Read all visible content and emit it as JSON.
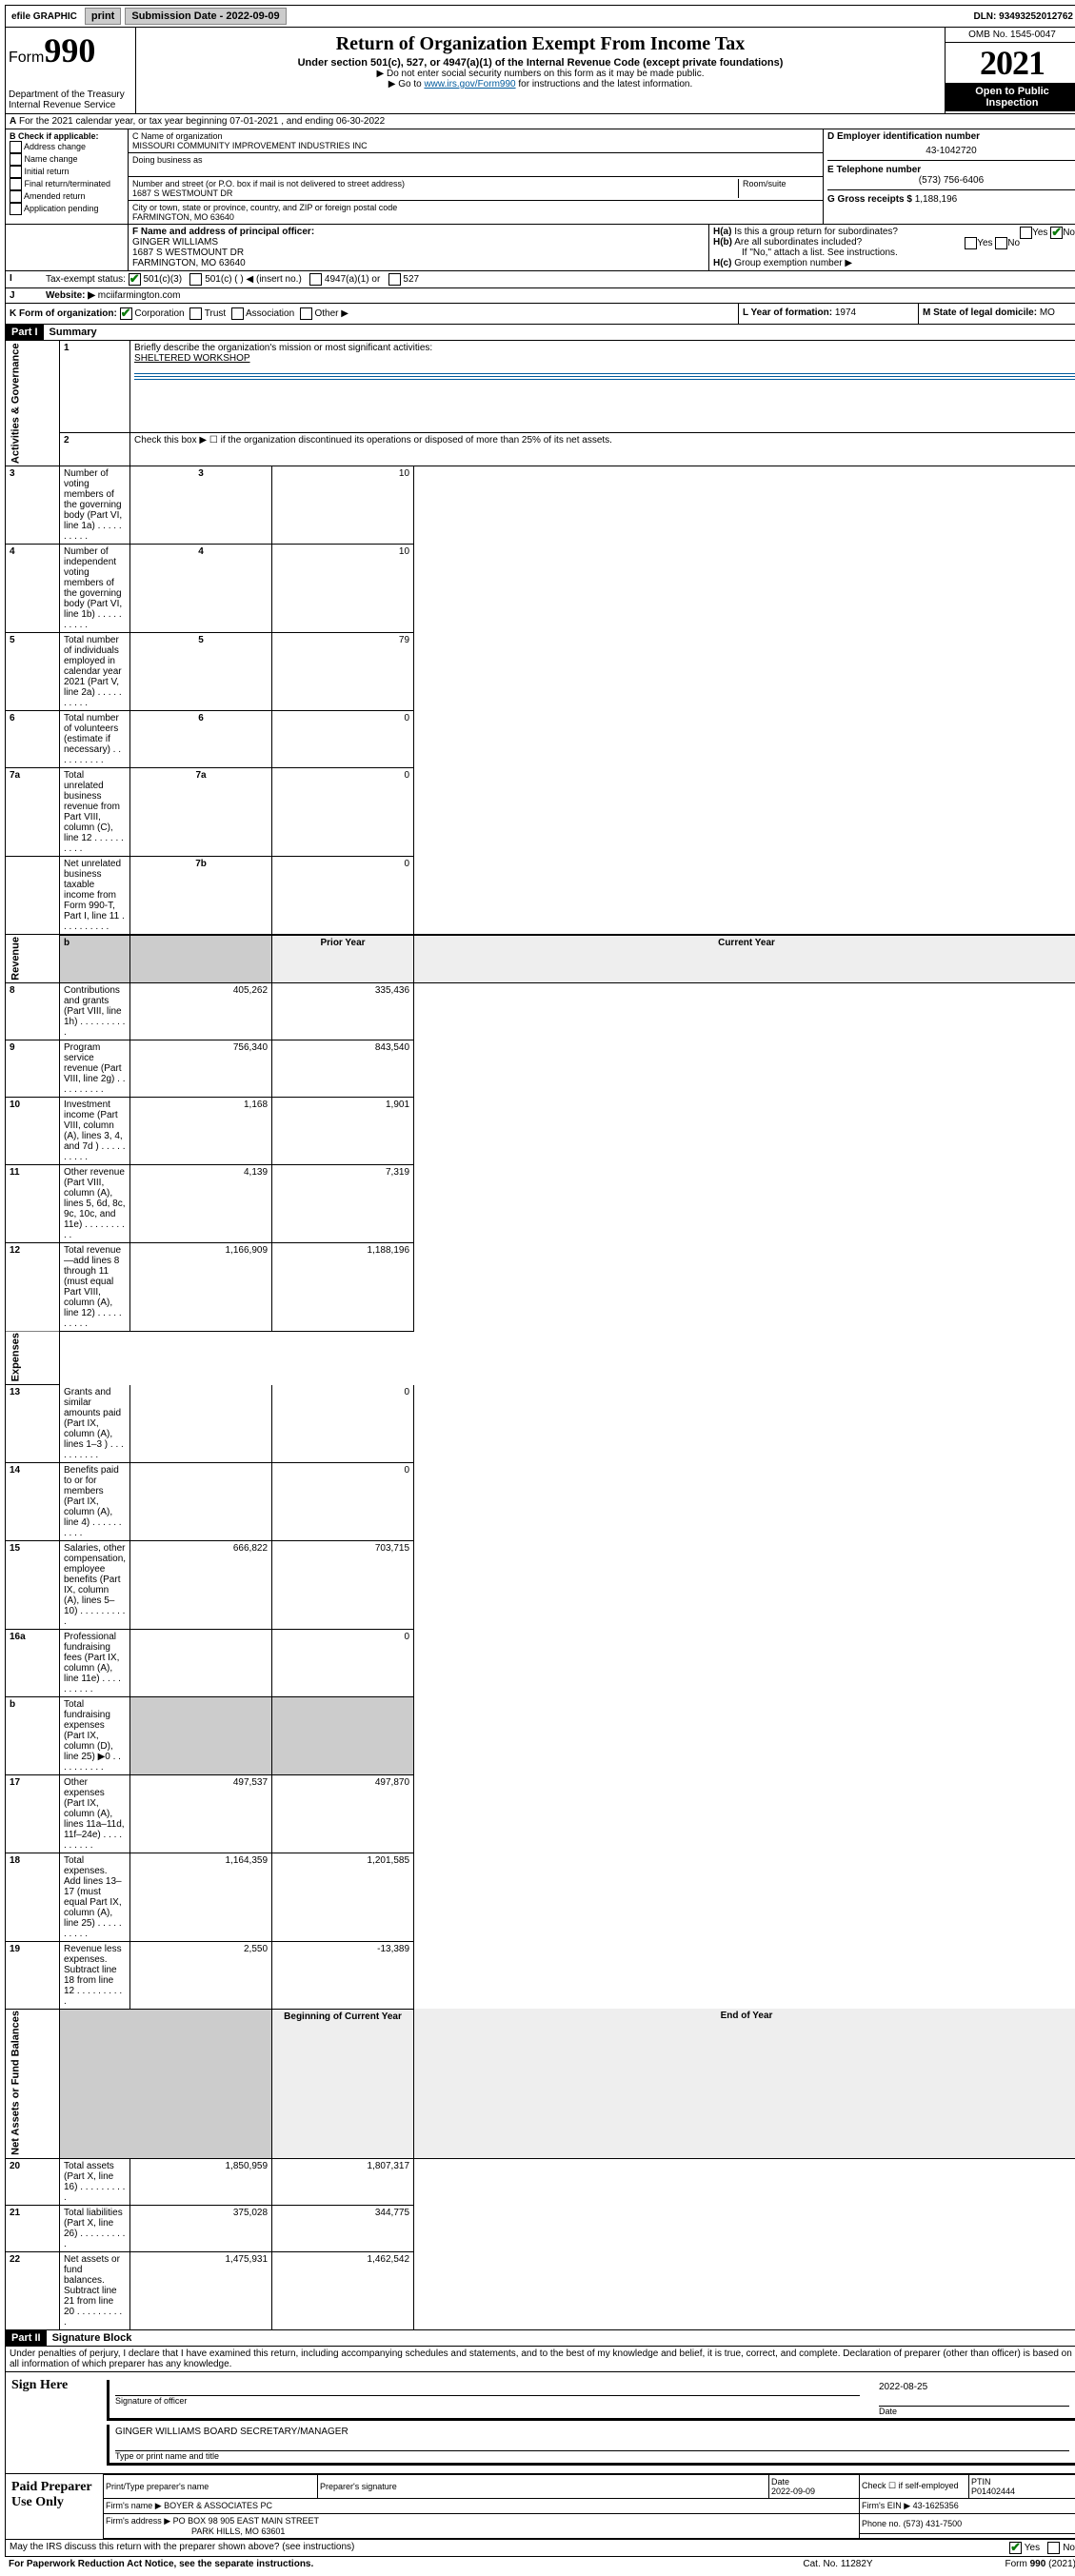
{
  "topbar": {
    "efile": "efile GRAPHIC",
    "print": "print",
    "subdate_label": "Submission Date - 2022-09-09",
    "dln": "DLN: 93493252012762"
  },
  "header": {
    "form_label": "Form",
    "form_number": "990",
    "title": "Return of Organization Exempt From Income Tax",
    "subtitle": "Under section 501(c), 527, or 4947(a)(1) of the Internal Revenue Code (except private foundations)",
    "note1": "▶ Do not enter social security numbers on this form as it may be made public.",
    "note2_pre": "▶ Go to ",
    "note2_link": "www.irs.gov/Form990",
    "note2_post": " for instructions and the latest information.",
    "dept": "Department of the Treasury",
    "irs": "Internal Revenue Service",
    "omb": "OMB No. 1545-0047",
    "year": "2021",
    "open": "Open to Public Inspection"
  },
  "section_a": {
    "line": "For the 2021 calendar year, or tax year beginning 07-01-2021   , and ending 06-30-2022",
    "b_label": "B Check if applicable:",
    "b_opts": [
      "Address change",
      "Name change",
      "Initial return",
      "Final return/terminated",
      "Amended return",
      "Application pending"
    ],
    "c_label": "C Name of organization",
    "c_name": "MISSOURI COMMUNITY IMPROVEMENT INDUSTRIES INC",
    "dba_label": "Doing business as",
    "addr_label": "Number and street (or P.O. box if mail is not delivered to street address)",
    "addr": "1687 S WESTMOUNT DR",
    "room_label": "Room/suite",
    "city_label": "City or town, state or province, country, and ZIP or foreign postal code",
    "city": "FARMINGTON, MO  63640",
    "d_label": "D Employer identification number",
    "d_val": "43-1042720",
    "e_label": "E Telephone number",
    "e_val": "(573) 756-6406",
    "g_label": "G Gross receipts $",
    "g_val": "1,188,196",
    "f_label": "F Name and address of principal officer:",
    "f_name": "GINGER WILLIAMS",
    "f_addr1": "1687 S WESTMOUNT DR",
    "f_addr2": "FARMINGTON, MO  63640",
    "ha": "Is this a group return for subordinates?",
    "hb": "Are all subordinates included?",
    "hb_note": "If \"No,\" attach a list. See instructions.",
    "hc": "Group exemption number ▶",
    "i_label": "Tax-exempt status:",
    "i_opts": [
      "501(c)(3)",
      "501(c) (   ) ◀ (insert no.)",
      "4947(a)(1) or",
      "527"
    ],
    "j_label": "Website: ▶",
    "j_val": "mciifarmington.com",
    "k_label": "K Form of organization:",
    "k_opts": [
      "Corporation",
      "Trust",
      "Association",
      "Other ▶"
    ],
    "l_label": "L Year of formation:",
    "l_val": "1974",
    "m_label": "M State of legal domicile:",
    "m_val": "MO",
    "h_a_lbl": "H(a)",
    "h_b_lbl": "H(b)",
    "h_c_lbl": "H(c)",
    "yes": "Yes",
    "no": "No",
    "i_lbl": "I",
    "j_lbl": "J"
  },
  "part1": {
    "hdr": "Part I",
    "title": "Summary",
    "q1_label": "Briefly describe the organization's mission or most significant activities:",
    "q1_val": "SHELTERED WORKSHOP",
    "vlabels": [
      "Activities & Governance",
      "Revenue",
      "Expenses",
      "Net Assets or Fund Balances"
    ],
    "rows": [
      {
        "n": "1",
        "text": "Briefly describe the organization's mission or most significant activities:"
      },
      {
        "n": "2",
        "text": "Check this box ▶ ☐ if the organization discontinued its operations or disposed of more than 25% of its net assets."
      },
      {
        "n": "3",
        "text": "Number of voting members of the governing body (Part VI, line 1a)",
        "box": "3",
        "cur": "10"
      },
      {
        "n": "4",
        "text": "Number of independent voting members of the governing body (Part VI, line 1b)",
        "box": "4",
        "cur": "10"
      },
      {
        "n": "5",
        "text": "Total number of individuals employed in calendar year 2021 (Part V, line 2a)",
        "box": "5",
        "cur": "79"
      },
      {
        "n": "6",
        "text": "Total number of volunteers (estimate if necessary)",
        "box": "6",
        "cur": "0"
      },
      {
        "n": "7a",
        "text": "Total unrelated business revenue from Part VIII, column (C), line 12",
        "box": "7a",
        "cur": "0"
      },
      {
        "n": "",
        "text": "Net unrelated business taxable income from Form 990-T, Part I, line 11",
        "box": "7b",
        "cur": "0"
      }
    ],
    "col_hdr_prior": "Prior Year",
    "col_hdr_cur": "Current Year",
    "rev_rows": [
      {
        "n": "8",
        "text": "Contributions and grants (Part VIII, line 1h)",
        "p": "405,262",
        "c": "335,436"
      },
      {
        "n": "9",
        "text": "Program service revenue (Part VIII, line 2g)",
        "p": "756,340",
        "c": "843,540"
      },
      {
        "n": "10",
        "text": "Investment income (Part VIII, column (A), lines 3, 4, and 7d )",
        "p": "1,168",
        "c": "1,901"
      },
      {
        "n": "11",
        "text": "Other revenue (Part VIII, column (A), lines 5, 6d, 8c, 9c, 10c, and 11e)",
        "p": "4,139",
        "c": "7,319"
      },
      {
        "n": "12",
        "text": "Total revenue—add lines 8 through 11 (must equal Part VIII, column (A), line 12)",
        "p": "1,166,909",
        "c": "1,188,196"
      }
    ],
    "exp_rows": [
      {
        "n": "13",
        "text": "Grants and similar amounts paid (Part IX, column (A), lines 1–3 )",
        "p": "",
        "c": "0"
      },
      {
        "n": "14",
        "text": "Benefits paid to or for members (Part IX, column (A), line 4)",
        "p": "",
        "c": "0"
      },
      {
        "n": "15",
        "text": "Salaries, other compensation, employee benefits (Part IX, column (A), lines 5–10)",
        "p": "666,822",
        "c": "703,715"
      },
      {
        "n": "16a",
        "text": "Professional fundraising fees (Part IX, column (A), line 11e)",
        "p": "",
        "c": "0"
      },
      {
        "n": "b",
        "text": "Total fundraising expenses (Part IX, column (D), line 25) ▶0",
        "p": "shade",
        "c": "shade"
      },
      {
        "n": "17",
        "text": "Other expenses (Part IX, column (A), lines 11a–11d, 11f–24e)",
        "p": "497,537",
        "c": "497,870"
      },
      {
        "n": "18",
        "text": "Total expenses. Add lines 13–17 (must equal Part IX, column (A), line 25)",
        "p": "1,164,359",
        "c": "1,201,585"
      },
      {
        "n": "19",
        "text": "Revenue less expenses. Subtract line 18 from line 12",
        "p": "2,550",
        "c": "-13,389"
      }
    ],
    "net_hdr_beg": "Beginning of Current Year",
    "net_hdr_end": "End of Year",
    "net_rows": [
      {
        "n": "20",
        "text": "Total assets (Part X, line 16)",
        "p": "1,850,959",
        "c": "1,807,317"
      },
      {
        "n": "21",
        "text": "Total liabilities (Part X, line 26)",
        "p": "375,028",
        "c": "344,775"
      },
      {
        "n": "22",
        "text": "Net assets or fund balances. Subtract line 21 from line 20",
        "p": "1,475,931",
        "c": "1,462,542"
      }
    ]
  },
  "part2": {
    "hdr": "Part II",
    "title": "Signature Block",
    "perjury": "Under penalties of perjury, I declare that I have examined this return, including accompanying schedules and statements, and to the best of my knowledge and belief, it is true, correct, and complete. Declaration of preparer (other than officer) is based on all information of which preparer has any knowledge.",
    "sign_here": "Sign Here",
    "sig_officer": "Signature of officer",
    "sig_date": "2022-08-25",
    "date_lbl": "Date",
    "sig_name": "GINGER WILLIAMS  BOARD SECRETARY/MANAGER",
    "type_name": "Type or print name and title",
    "paid": "Paid Preparer Use Only",
    "prep_name_lbl": "Print/Type preparer's name",
    "prep_sig_lbl": "Preparer's signature",
    "prep_date_lbl": "Date",
    "prep_date": "2022-09-09",
    "check_lbl": "Check ☐ if self-employed",
    "ptin_lbl": "PTIN",
    "ptin": "P01402444",
    "firm_name_lbl": "Firm's name    ▶",
    "firm_name": "BOYER & ASSOCIATES PC",
    "firm_ein_lbl": "Firm's EIN ▶",
    "firm_ein": "43-1625356",
    "firm_addr_lbl": "Firm's address ▶",
    "firm_addr1": "PO BOX 98 905 EAST MAIN STREET",
    "firm_addr2": "PARK HILLS, MO  63601",
    "phone_lbl": "Phone no.",
    "phone": "(573) 431-7500",
    "irs_discuss": "May the IRS discuss this return with the preparer shown above? (see instructions)",
    "yes": "Yes",
    "no": "No"
  },
  "footer": {
    "pra": "For Paperwork Reduction Act Notice, see the separate instructions.",
    "cat": "Cat. No. 11282Y",
    "form": "Form 990 (2021)"
  }
}
